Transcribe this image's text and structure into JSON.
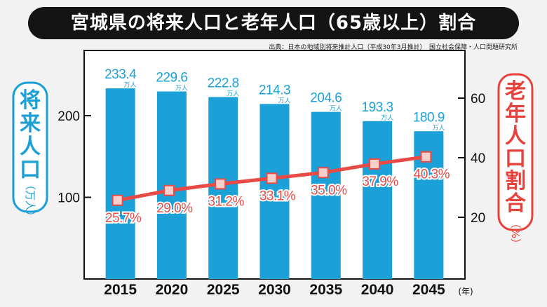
{
  "title": "宮城県の将来人口と老年人口（65歳以上）割合",
  "source": "出典：日本の地域別将来推計人口（平成30年3月推計）　国立社会保障・人口問題研究所",
  "chart_data": {
    "type": "bar+line",
    "categories": [
      "2015",
      "2020",
      "2025",
      "2030",
      "2035",
      "2040",
      "2045"
    ],
    "x_unit": "(年)",
    "bar_series": {
      "values": [
        233.4,
        229.6,
        222.8,
        214.3,
        204.6,
        193.3,
        180.9
      ],
      "value_labels": [
        "233.4",
        "229.6",
        "222.8",
        "214.3",
        "204.6",
        "193.3",
        "180.9"
      ],
      "unit_label": "万人",
      "color": "#1ba1d8",
      "axis_label": "将来人口",
      "axis_unit": "（万人）",
      "axis_label_color": "#1b9fd6",
      "yticks": [
        100,
        200
      ],
      "ylim": [
        0,
        260
      ]
    },
    "line_series": {
      "values": [
        25.7,
        29.0,
        31.2,
        33.1,
        35.0,
        37.9,
        40.3
      ],
      "value_labels": [
        "25.7%",
        "29.0%",
        "31.2%",
        "33.1%",
        "35.0%",
        "37.9%",
        "40.3%"
      ],
      "color": "#e84a46",
      "axis_label": "老年人口割合",
      "axis_unit": "（%）",
      "axis_label_color": "#e8413c",
      "yticks": [
        20,
        40,
        60
      ],
      "ylim": [
        0,
        74
      ]
    },
    "legend": "none",
    "grid": false
  }
}
